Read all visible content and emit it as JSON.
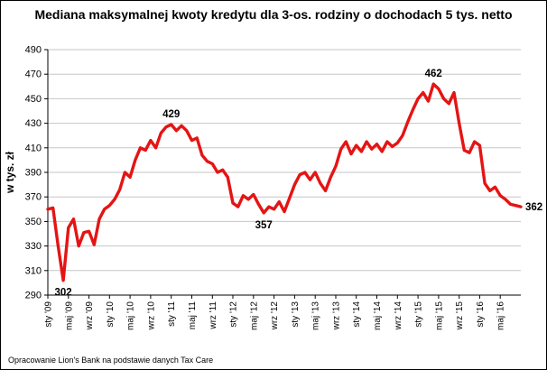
{
  "title": "Mediana maksymalnej kwoty kredytu dla 3-os. rodziny o dochodach 5 tys. netto",
  "footer": "Opracowanie Lion's Bank na podstawie danych Tax Care",
  "chart_data": {
    "type": "line",
    "title": "Mediana maksymalnej kwoty kredytu dla 3-os. rodziny o dochodach 5 tys. netto",
    "xlabel": "",
    "ylabel": "w tys. zł",
    "ylim": [
      290,
      490
    ],
    "ytick_step": 20,
    "grid": true,
    "legend_position": "none",
    "line_color": "#e51414",
    "grid_color": "#c6c6c6",
    "axis_color": "#000000",
    "x_label_every": 4,
    "x_labels": [
      "sty '09",
      "maj '09",
      "wrz '09",
      "sty '10",
      "maj '10",
      "wrz '10",
      "sty '11",
      "maj '11",
      "wrz '11",
      "sty '12",
      "maj '12",
      "wrz '12",
      "sty '13",
      "maj '13",
      "wrz '13",
      "sty '14",
      "maj '14",
      "wrz '14",
      "sty '15",
      "maj '15",
      "wrz '15",
      "sty '16",
      "maj '16"
    ],
    "values": [
      360,
      361,
      330,
      302,
      345,
      352,
      330,
      341,
      342,
      331,
      352,
      360,
      363,
      368,
      376,
      390,
      386,
      400,
      410,
      408,
      416,
      410,
      422,
      427,
      429,
      424,
      428,
      424,
      416,
      418,
      404,
      399,
      397,
      390,
      392,
      386,
      365,
      362,
      371,
      368,
      372,
      364,
      357,
      362,
      360,
      366,
      358,
      369,
      380,
      388,
      390,
      384,
      390,
      381,
      375,
      386,
      395,
      409,
      415,
      405,
      412,
      407,
      415,
      409,
      413,
      407,
      415,
      411,
      414,
      420,
      431,
      441,
      450,
      455,
      448,
      462,
      458,
      450,
      446,
      455,
      430,
      408,
      406,
      415,
      412,
      381,
      375,
      378,
      371,
      368,
      364,
      363,
      362
    ],
    "annotations": [
      {
        "label": "302",
        "index": 3,
        "position": "below"
      },
      {
        "label": "429",
        "index": 24,
        "position": "above"
      },
      {
        "label": "357",
        "index": 42,
        "position": "below"
      },
      {
        "label": "462",
        "index": 75,
        "position": "above"
      },
      {
        "label": "362",
        "index": 92,
        "position": "right"
      }
    ]
  }
}
